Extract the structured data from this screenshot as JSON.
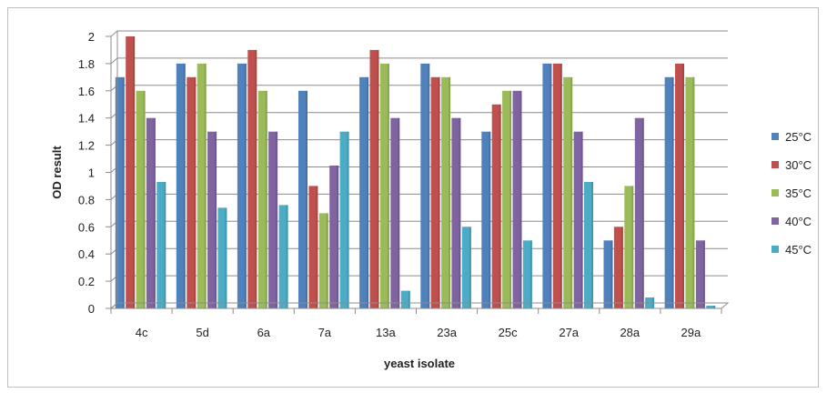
{
  "chart_data": {
    "type": "bar",
    "title": "",
    "xlabel": "yeast isolate",
    "ylabel": "OD result",
    "categories": [
      "4c",
      "5d",
      "6a",
      "7a",
      "13a",
      "23a",
      "25c",
      "27a",
      "28a",
      "29a"
    ],
    "ylim": [
      0,
      2
    ],
    "yticks": [
      "0",
      "0.2",
      "0.4",
      "0.6",
      "0.8",
      "1",
      "1.2",
      "1.4",
      "1.6",
      "1.8",
      "2"
    ],
    "grid": true,
    "legend_position": "right",
    "series": [
      {
        "name": "25°C",
        "color": "#4f81bd",
        "values": [
          1.7,
          1.8,
          1.8,
          1.6,
          1.7,
          1.8,
          1.3,
          1.8,
          0.5,
          1.7
        ]
      },
      {
        "name": "30°C",
        "color": "#c0504d",
        "values": [
          2.0,
          1.7,
          1.9,
          0.9,
          1.9,
          1.7,
          1.5,
          1.8,
          0.6,
          1.8
        ]
      },
      {
        "name": "35°C",
        "color": "#9bbb59",
        "values": [
          1.6,
          1.8,
          1.6,
          0.7,
          1.8,
          1.7,
          1.6,
          1.7,
          0.9,
          1.7
        ]
      },
      {
        "name": "40°C",
        "color": "#8064a2",
        "values": [
          1.4,
          1.3,
          1.3,
          1.05,
          1.4,
          1.4,
          1.6,
          1.3,
          1.4,
          0.5
        ]
      },
      {
        "name": "45°C",
        "color": "#4bacc6",
        "values": [
          0.93,
          0.74,
          0.76,
          1.3,
          0.13,
          0.6,
          0.5,
          0.93,
          0.08,
          0.02
        ]
      }
    ]
  }
}
